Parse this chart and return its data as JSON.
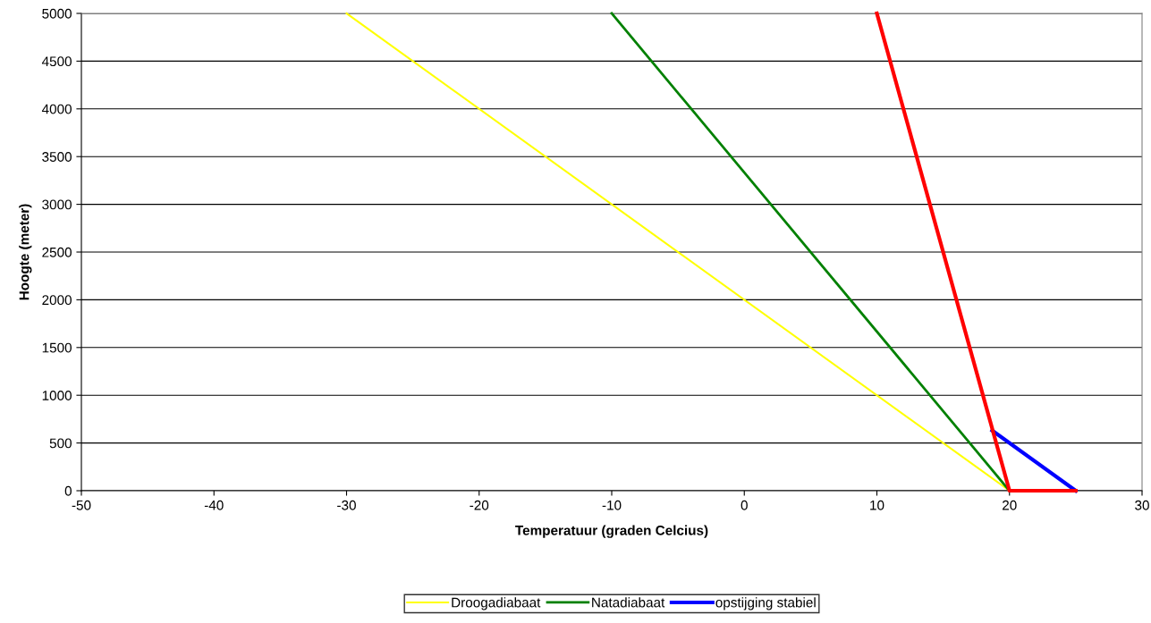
{
  "chart_data": {
    "type": "line",
    "xlabel": "Temperatuur (graden Celcius)",
    "ylabel": "Hoogte (meter)",
    "xlim": [
      -50,
      30
    ],
    "xticks": [
      -50,
      -40,
      -30,
      -20,
      -10,
      0,
      10,
      20,
      30
    ],
    "ylim": [
      0,
      5000
    ],
    "yticks": [
      0,
      500,
      1000,
      1500,
      2000,
      2500,
      3000,
      3500,
      4000,
      4500,
      5000
    ],
    "grid": "y",
    "legend": "bottom",
    "marker": "none",
    "series": [
      {
        "name": "Droogadiabaat",
        "color": "#ffff00",
        "x": [
          20,
          -30
        ],
        "values": [
          0,
          5000
        ]
      },
      {
        "name": "Natadiabaat",
        "color": "#008000",
        "x": [
          20,
          -10
        ],
        "values": [
          0,
          5000
        ]
      },
      {
        "name": "opstijging stabiel",
        "color": "#0000ff",
        "x": [
          25,
          18.7
        ],
        "values": [
          0,
          630
        ]
      },
      {
        "color": "#ff0000",
        "x": [
          25,
          20,
          10
        ],
        "values": [
          0,
          0,
          5000
        ]
      }
    ]
  }
}
